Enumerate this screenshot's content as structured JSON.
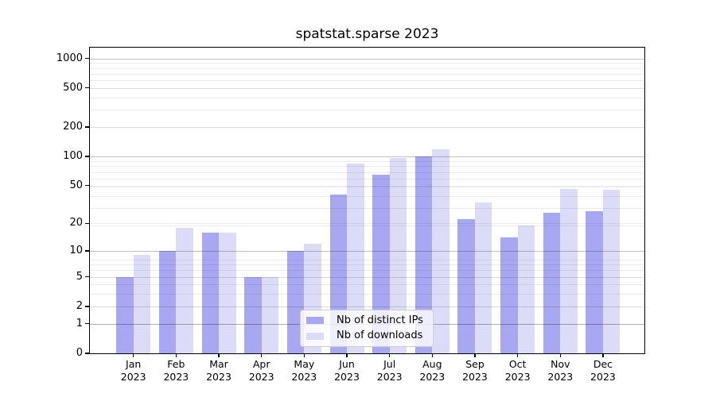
{
  "figure": {
    "background": "#ffffff"
  },
  "chart_data": {
    "type": "bar",
    "title": "spatstat.sparse 2023",
    "months": [
      "Jan",
      "Feb",
      "Mar",
      "Apr",
      "May",
      "Jun",
      "Jul",
      "Aug",
      "Sep",
      "Oct",
      "Nov",
      "Dec"
    ],
    "year": "2023",
    "series": [
      {
        "name": "Nb of distinct IPs",
        "color": "#a8a8f2",
        "values": [
          5,
          10,
          16,
          5,
          10,
          40,
          65,
          100,
          22,
          14,
          26,
          27
        ]
      },
      {
        "name": "Nb of downloads",
        "color": "#dcdcf8",
        "values": [
          9,
          18,
          16,
          5,
          12,
          85,
          96,
          118,
          33,
          19,
          46,
          45
        ]
      }
    ],
    "yticks": [
      0,
      1,
      2,
      5,
      10,
      20,
      50,
      100,
      200,
      500,
      1000
    ],
    "yscale": "log10(value+1)",
    "ylim": [
      0,
      1300
    ],
    "grid": true,
    "legend_position": "lower-center",
    "axis_color": "#000000",
    "gridline_major_color": "#bfbfbf",
    "gridline_minor_color": "#ececec"
  }
}
